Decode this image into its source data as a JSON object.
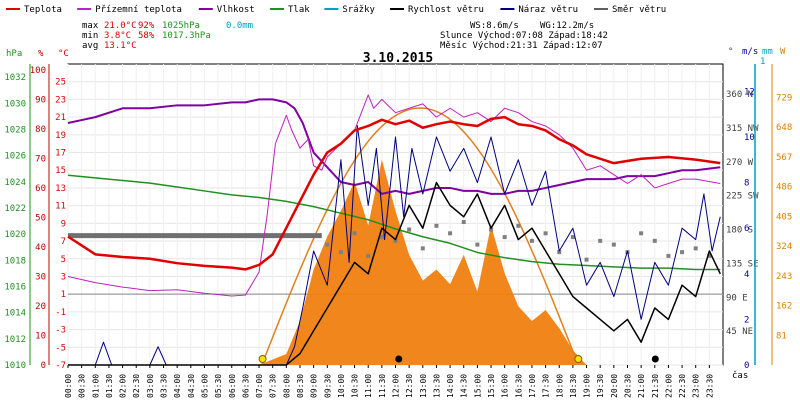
{
  "chart_data": {
    "type": "line",
    "title": "3.10.2015",
    "xlabel": "čas",
    "legend": [
      {
        "name": "Teplota",
        "color": "#e00000"
      },
      {
        "name": "Přízemní teplota",
        "color": "#c020c0"
      },
      {
        "name": "Vlhkost",
        "color": "#8000a0"
      },
      {
        "name": "Tlak",
        "color": "#209020"
      },
      {
        "name": "Srážky",
        "color": "#00a0c0"
      },
      {
        "name": "Rychlost větru",
        "color": "#000000"
      },
      {
        "name": "Náraz větru",
        "color": "#000080"
      },
      {
        "name": "Směr větru",
        "color": "#606060"
      }
    ],
    "stats": {
      "max_label": "max",
      "max_temp": "21.0°C",
      "max_hum": "92%",
      "max_press": "1025hPa",
      "max_rain": "0.0mm",
      "min_label": "min",
      "min_temp": "3.8°C",
      "min_hum": "58%",
      "min_press": "1017.3hPa",
      "avg_label": "avg",
      "avg_temp": "13.1°C",
      "ws": "WS:8.6m/s",
      "wg": "WG:12.2m/s",
      "sun": "Slunce Východ:07:08  Západ:18:42",
      "moon": "Měsíc  Východ:21:31  Západ:12:07"
    },
    "x_ticks": [
      "00:00",
      "00:30",
      "01:00",
      "01:30",
      "02:00",
      "02:30",
      "03:00",
      "03:30",
      "04:00",
      "04:30",
      "05:00",
      "05:30",
      "06:00",
      "06:30",
      "07:00",
      "07:30",
      "08:00",
      "08:30",
      "09:00",
      "09:30",
      "10:00",
      "10:30",
      "11:00",
      "11:30",
      "12:00",
      "12:30",
      "13:00",
      "13:30",
      "14:00",
      "14:30",
      "15:00",
      "15:30",
      "16:00",
      "16:30",
      "17:00",
      "17:30",
      "18:00",
      "18:30",
      "19:00",
      "19:30",
      "20:00",
      "20:30",
      "21:00",
      "21:30",
      "22:00",
      "22:30",
      "23:00",
      "23:30"
    ],
    "axes": {
      "pressure": {
        "unit": "hPa",
        "ticks": [
          "1032",
          "1030",
          "1028",
          "1026",
          "1024",
          "1022",
          "1020",
          "1018",
          "1016",
          "1014",
          "1012",
          "1010"
        ],
        "color": "#209020"
      },
      "humidity": {
        "unit": "%",
        "ticks": [
          "100",
          "90",
          "80",
          "70",
          "60",
          "50",
          "40",
          "30",
          "20",
          "10",
          "0"
        ],
        "color": "#c00000"
      },
      "temperature": {
        "unit": "°C",
        "ticks": [
          "25",
          "23",
          "21",
          "19",
          "17",
          "15",
          "13",
          "11",
          "9",
          "7",
          "5",
          "3",
          "1",
          "-1",
          "-3",
          "-5",
          "-7"
        ],
        "color": "#e00000"
      },
      "direction": {
        "unit": "°",
        "ticks": [
          "360 N",
          "315 NW",
          "270 W",
          "225 SW",
          "180 S",
          "135 SE",
          "90 E",
          "45 NE"
        ],
        "color": "#404040"
      },
      "wind": {
        "unit": "m/s",
        "ticks": [
          "12",
          "10",
          "8",
          "6",
          "4",
          "2",
          "0"
        ],
        "color": "#0000a0"
      },
      "rain": {
        "unit": "mm",
        "top": "1",
        "color": "#00a0c0"
      },
      "solar": {
        "unit": "W",
        "ticks": [
          "729",
          "648",
          "567",
          "486",
          "405",
          "324",
          "243",
          "162",
          "81"
        ],
        "color": "#e08000"
      }
    },
    "ylim_temp": [
      -7,
      27
    ],
    "series": [
      {
        "name": "Teplota",
        "x": [
          0,
          0.5,
          1,
          2,
          3,
          4,
          5,
          6,
          6.5,
          7,
          7.5,
          8,
          8.5,
          9,
          9.5,
          10,
          10.5,
          11,
          11.5,
          12,
          12.5,
          13,
          13.5,
          14,
          14.5,
          15,
          15.5,
          16,
          16.5,
          17,
          17.5,
          18,
          18.5,
          19,
          20,
          21,
          22,
          23,
          23.9
        ],
        "values": [
          7.5,
          6.5,
          5.5,
          5.2,
          5.0,
          4.5,
          4.2,
          4.0,
          3.8,
          4.3,
          5.5,
          8.5,
          11.5,
          14.5,
          17.0,
          18.0,
          19.5,
          20.0,
          20.7,
          20.2,
          20.6,
          19.8,
          20.2,
          20.5,
          20.2,
          20.0,
          20.8,
          21.0,
          20.2,
          20.0,
          19.5,
          18.5,
          17.8,
          16.8,
          15.8,
          16.3,
          16.5,
          16.2,
          15.8
        ]
      },
      {
        "name": "Přízemní teplota",
        "x": [
          0,
          1,
          2,
          3,
          4,
          5,
          6,
          6.5,
          7,
          7.3,
          7.6,
          8,
          8.2,
          8.5,
          8.8,
          9,
          9.3,
          9.5,
          10,
          10.5,
          11,
          11.2,
          11.5,
          12,
          12.5,
          13,
          13.5,
          14,
          14.5,
          15,
          15.5,
          16,
          16.5,
          17,
          17.5,
          18,
          18.5,
          19,
          19.5,
          20,
          20.5,
          21,
          21.5,
          22,
          22.5,
          23,
          23.9
        ],
        "values": [
          3.0,
          2.3,
          1.8,
          1.4,
          1.5,
          1.1,
          0.8,
          0.9,
          3.5,
          10.0,
          18.0,
          21.2,
          19.5,
          17.5,
          18.5,
          15.5,
          15.0,
          16.5,
          18.0,
          19.5,
          23.5,
          22.0,
          23.0,
          21.5,
          22.0,
          22.5,
          21.0,
          22.0,
          21.0,
          21.5,
          20.5,
          22.0,
          21.5,
          20.5,
          20.0,
          19.0,
          17.5,
          15.0,
          15.5,
          14.5,
          13.5,
          14.5,
          13.0,
          13.5,
          14.0,
          14.0,
          13.5
        ]
      },
      {
        "name": "Vlhkost",
        "x": [
          0,
          0.5,
          1,
          2,
          3,
          4,
          5,
          6,
          6.5,
          7,
          7.5,
          8,
          8.3,
          8.6,
          9,
          9.5,
          10,
          10.5,
          11,
          11.5,
          12,
          12.5,
          13,
          13.5,
          14,
          14.5,
          15,
          15.5,
          16,
          16.5,
          17,
          17.5,
          18,
          18.5,
          19,
          19.5,
          20,
          20.5,
          21,
          21.5,
          22,
          22.5,
          23,
          23.9
        ],
        "values": [
          82,
          83,
          84,
          87,
          87,
          88,
          88,
          89,
          89,
          90,
          90,
          89,
          87,
          82,
          72,
          67,
          62,
          61,
          62,
          58,
          59,
          58,
          59,
          60,
          60,
          59,
          59,
          58,
          58,
          59,
          59,
          60,
          61,
          62,
          63,
          63,
          63,
          64,
          64,
          64,
          65,
          66,
          66,
          67
        ]
      },
      {
        "name": "Tlak",
        "x": [
          0,
          1,
          2,
          3,
          4,
          5,
          6,
          7,
          8,
          9,
          10,
          11,
          12,
          13,
          14,
          15,
          16,
          17,
          18,
          19,
          20,
          21,
          22,
          23,
          23.9
        ],
        "values": [
          1024.5,
          1024.3,
          1024.1,
          1023.9,
          1023.6,
          1023.3,
          1023.0,
          1022.8,
          1022.5,
          1022.1,
          1021.6,
          1021.1,
          1020.4,
          1019.8,
          1019.3,
          1018.6,
          1018.2,
          1017.9,
          1017.7,
          1017.6,
          1017.5,
          1017.4,
          1017.4,
          1017.3,
          1017.3
        ]
      },
      {
        "name": "Rychlost větru",
        "x": [
          0,
          1,
          2,
          3,
          4,
          5,
          6,
          7,
          8,
          8.5,
          9,
          9.5,
          10,
          10.5,
          11,
          11.5,
          12,
          12.5,
          13,
          13.5,
          14,
          14.5,
          15,
          15.5,
          16,
          16.5,
          17,
          17.5,
          18,
          18.5,
          19,
          19.5,
          20,
          20.5,
          21,
          21.5,
          22,
          22.5,
          23,
          23.5,
          23.9
        ],
        "values": [
          0,
          0,
          0,
          0,
          0,
          0,
          0,
          0,
          0,
          0.5,
          1.5,
          2.5,
          3.5,
          4.5,
          4.0,
          6.0,
          5.5,
          7.0,
          6.0,
          8.0,
          7.0,
          6.5,
          7.5,
          6.0,
          7.0,
          5.5,
          6.0,
          5.0,
          4.0,
          3.0,
          2.5,
          2.0,
          1.5,
          2.0,
          1.0,
          2.5,
          2.0,
          3.5,
          3.0,
          5.0,
          4.0
        ]
      },
      {
        "name": "Náraz větru",
        "x": [
          0,
          1,
          1.3,
          1.6,
          2,
          3,
          3.3,
          3.6,
          4,
          5,
          6,
          7,
          8,
          8.3,
          8.6,
          9,
          9.5,
          10,
          10.3,
          10.6,
          11,
          11.3,
          11.6,
          12,
          12.3,
          12.6,
          13,
          13.5,
          14,
          14.5,
          15,
          15.5,
          16,
          16.5,
          17,
          17.5,
          18,
          18.5,
          19,
          19.5,
          20,
          20.5,
          21,
          21.5,
          22,
          22.5,
          23,
          23.3,
          23.6,
          23.9
        ],
        "values": [
          0,
          0,
          1.0,
          0,
          0,
          0,
          0.8,
          0,
          0,
          0,
          0,
          0,
          0,
          0.8,
          2.5,
          5.0,
          3.5,
          9.0,
          4.5,
          10.5,
          7.0,
          9.5,
          5.5,
          10.0,
          6.5,
          9.5,
          7.5,
          10.0,
          8.5,
          9.5,
          8.0,
          10.0,
          7.5,
          9.0,
          7.0,
          8.5,
          5.0,
          6.0,
          3.5,
          4.5,
          3.0,
          5.0,
          2.0,
          4.5,
          3.5,
          6.0,
          5.5,
          7.5,
          5.0,
          6.5
        ]
      },
      {
        "name": "Směr větru",
        "x": [
          0,
          3,
          6,
          9,
          9.5,
          10,
          10.5,
          11,
          11.5,
          12,
          12.5,
          13,
          13.5,
          14,
          14.5,
          15,
          15.5,
          16,
          16.5,
          17,
          17.5,
          18,
          18.5,
          19,
          19.5,
          20,
          20.5,
          21,
          21.5,
          22,
          22.5,
          23,
          23.5
        ],
        "values": [
          172,
          172,
          172,
          172,
          160,
          150,
          175,
          145,
          170,
          165,
          180,
          155,
          185,
          175,
          190,
          160,
          180,
          170,
          185,
          165,
          175,
          150,
          170,
          140,
          165,
          160,
          150,
          175,
          165,
          145,
          150,
          155,
          145
        ]
      },
      {
        "name": "Solar",
        "x": [
          0,
          7,
          8,
          8.5,
          9,
          9.5,
          10,
          10.5,
          11,
          11.5,
          12,
          12.5,
          13,
          13.5,
          14,
          14.5,
          15,
          15.5,
          16,
          16.5,
          17,
          17.5,
          18,
          18.5,
          19,
          24
        ],
        "values": [
          0,
          0,
          30,
          120,
          260,
          350,
          420,
          500,
          380,
          560,
          420,
          300,
          230,
          260,
          220,
          300,
          200,
          380,
          250,
          160,
          120,
          150,
          100,
          40,
          0,
          0
        ]
      }
    ]
  }
}
